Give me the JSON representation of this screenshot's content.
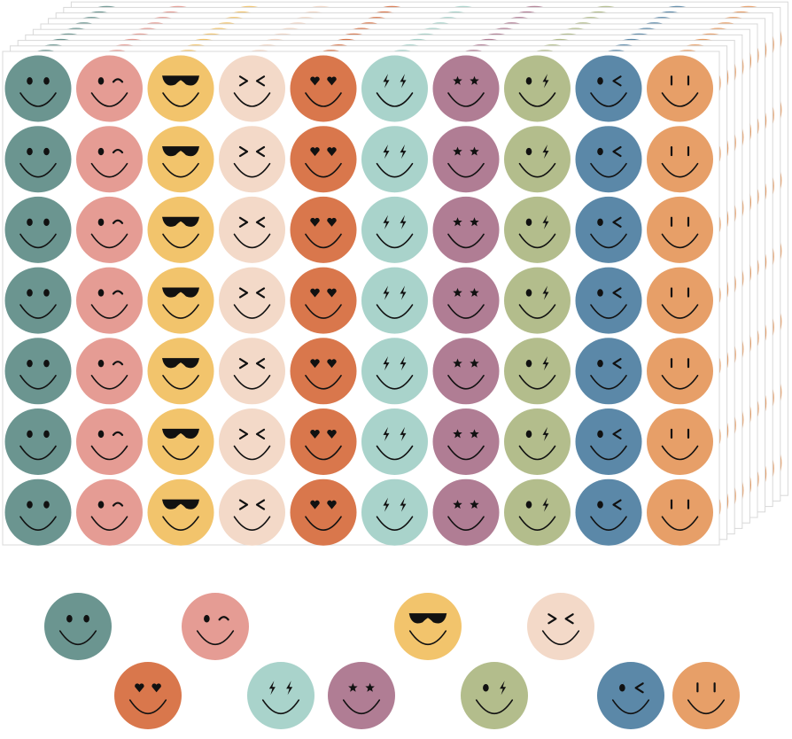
{
  "product": {
    "sheet_rows": 7,
    "stacked_sheets": 10,
    "stickers": [
      {
        "face": "classic",
        "color": "#6b9590"
      },
      {
        "face": "wink",
        "color": "#e59c94"
      },
      {
        "face": "sunglasses",
        "color": "#f2c46c"
      },
      {
        "face": "squint",
        "color": "#f3d9c8"
      },
      {
        "face": "heart-eyes",
        "color": "#d9774c"
      },
      {
        "face": "lightning-eyes",
        "color": "#a9d3cb"
      },
      {
        "face": "star-eyes",
        "color": "#b07d94"
      },
      {
        "face": "dot-lightning",
        "color": "#b3bd8c"
      },
      {
        "face": "dot-chevron",
        "color": "#5b88a8"
      },
      {
        "face": "line-eyes",
        "color": "#e79f68"
      }
    ],
    "loose_stickers": [
      {
        "face": "classic"
      },
      {
        "face": "wink"
      },
      {
        "face": "sunglasses"
      },
      {
        "face": "squint"
      },
      {
        "face": "heart-eyes"
      },
      {
        "face": "lightning-eyes"
      },
      {
        "face": "star-eyes"
      },
      {
        "face": "dot-lightning"
      },
      {
        "face": "dot-chevron"
      },
      {
        "face": "line-eyes"
      }
    ],
    "sheet_color": "#ffffff",
    "ink_color": "#111111"
  }
}
